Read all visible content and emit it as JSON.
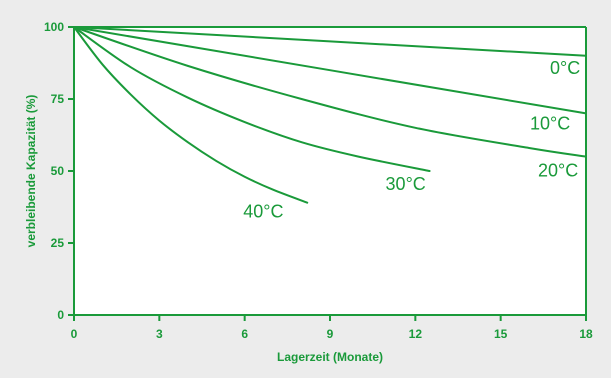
{
  "chart_data": {
    "type": "line",
    "xlabel": "Lagerzeit (Monate)",
    "ylabel": "verbleibende Kapazität (%)",
    "xlim": [
      0,
      18
    ],
    "ylim": [
      0,
      100
    ],
    "x_ticks": [
      "0",
      "3",
      "6",
      "9",
      "12",
      "15",
      "18"
    ],
    "y_ticks": [
      "0",
      "25",
      "50",
      "75",
      "100"
    ],
    "grid": false,
    "colors": {
      "line": "#1a9a3a",
      "axis": "#1a9a3a",
      "text": "#1a9a3a",
      "plot_background": "#ffffff",
      "page_background": "#ececec"
    },
    "series": [
      {
        "name": "0°C",
        "x": [
          0,
          18
        ],
        "y": [
          100,
          90
        ]
      },
      {
        "name": "10°C",
        "x": [
          0,
          18
        ],
        "y": [
          100,
          70
        ]
      },
      {
        "name": "20°C",
        "x": [
          0,
          4,
          8,
          12,
          16,
          18
        ],
        "y": [
          100,
          86.5,
          75,
          65,
          58,
          55
        ]
      },
      {
        "name": "30°C",
        "x": [
          0,
          2,
          4,
          6,
          8,
          10,
          12.5
        ],
        "y": [
          100,
          86,
          75.5,
          67,
          60,
          55,
          50
        ]
      },
      {
        "name": "40°C",
        "x": [
          0,
          1,
          2,
          3,
          4,
          5,
          6,
          7,
          8.2
        ],
        "y": [
          100,
          87,
          76.5,
          67.5,
          60,
          53.5,
          48,
          43.5,
          39
        ]
      }
    ]
  }
}
